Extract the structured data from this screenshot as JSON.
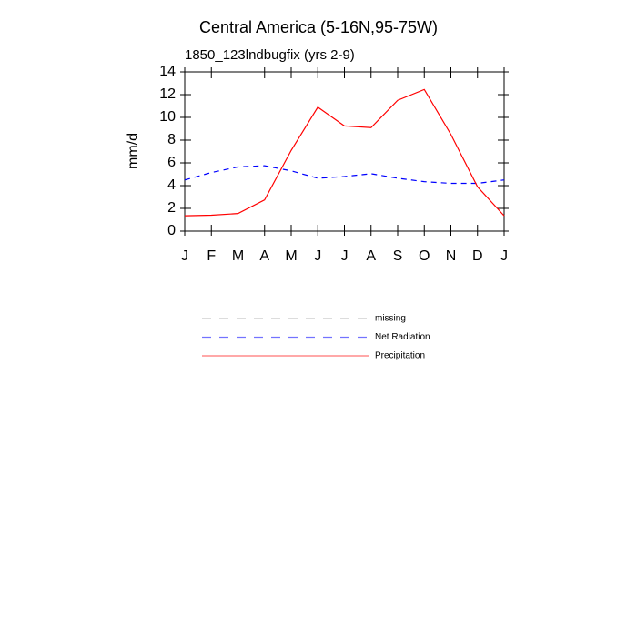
{
  "chart_data": {
    "type": "line",
    "title": "Central America (5-16N,95-75W)",
    "subtitle": "1850_123lndbugfix (yrs 2-9)",
    "y_label": "mm/d",
    "categories": [
      "J",
      "F",
      "M",
      "A",
      "M",
      "J",
      "J",
      "A",
      "S",
      "O",
      "N",
      "D",
      "J"
    ],
    "series": [
      {
        "name": "missing",
        "color": "#999999",
        "dash": true,
        "values": [
          null,
          null,
          null,
          null,
          null,
          null,
          null,
          null,
          null,
          null,
          null,
          null,
          null
        ]
      },
      {
        "name": "Net Radiation",
        "color": "#0000ff",
        "dash": true,
        "values": [
          4.5,
          5.15,
          5.65,
          5.75,
          5.3,
          4.65,
          4.8,
          5.05,
          4.65,
          4.35,
          4.2,
          4.2,
          4.5
        ]
      },
      {
        "name": "Precipitation",
        "color": "#ff0000",
        "dash": false,
        "values": [
          1.35,
          1.4,
          1.55,
          2.75,
          7.1,
          10.9,
          9.25,
          9.1,
          11.5,
          12.45,
          8.5,
          3.9,
          1.35
        ]
      }
    ],
    "ylim": [
      0,
      14
    ],
    "yticks": [
      0,
      2,
      4,
      6,
      8,
      10,
      12,
      14
    ]
  }
}
